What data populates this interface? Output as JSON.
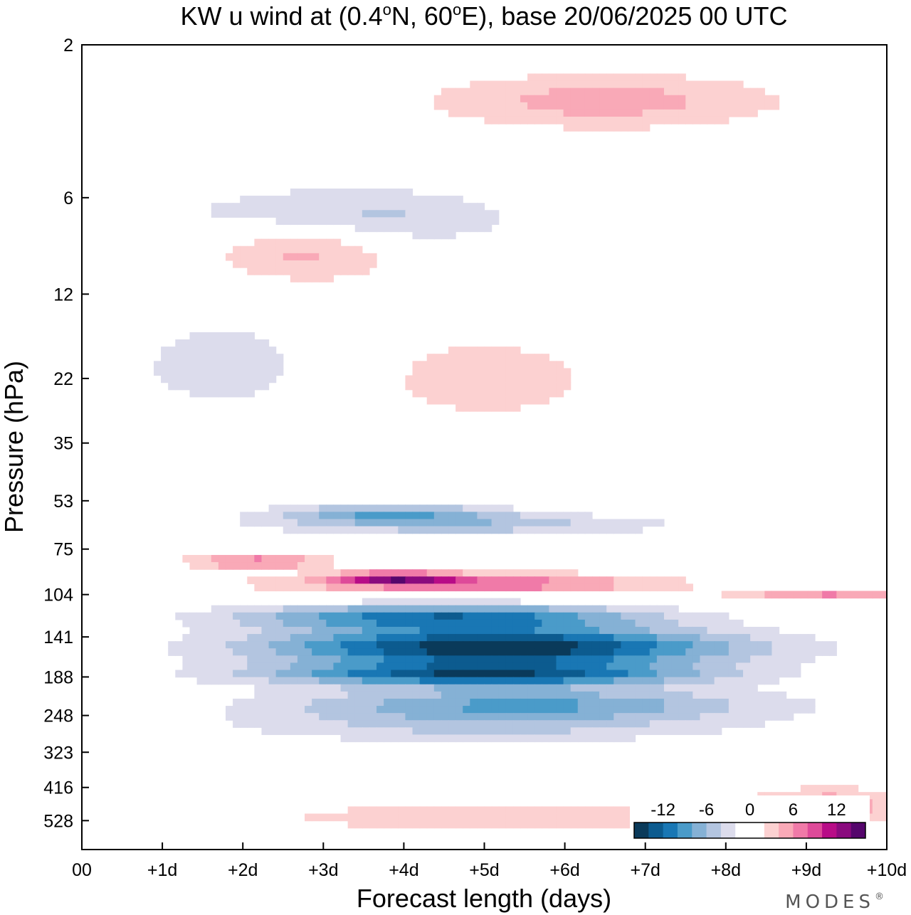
{
  "chart_data": {
    "type": "heatmap",
    "title_parts": {
      "prefix": "KW u wind at (0.4",
      "deg1": "o",
      "mid": "N, 60",
      "deg2": "o",
      "suffix": "E),  base 20/06/2025  00 UTC"
    },
    "xlabel": "Forecast length (days)",
    "ylabel": "Pressure (hPa)",
    "x_ticks": [
      "00",
      "+1d",
      "+2d",
      "+3d",
      "+4d",
      "+5d",
      "+6d",
      "+7d",
      "+8d",
      "+9d",
      "+10d"
    ],
    "xlim": [
      0,
      10
    ],
    "y_ticks": [
      2,
      6,
      12,
      22,
      35,
      53,
      75,
      104,
      141,
      188,
      248,
      323,
      416,
      528
    ],
    "ylim": [
      2,
      650
    ],
    "y_scale": "log",
    "levels": [
      -14,
      -12,
      -10,
      -8,
      -6,
      -4,
      -2,
      0,
      2,
      4,
      6,
      8,
      10,
      12,
      14
    ],
    "colors": [
      "#0a3a5a",
      "#0c5b8f",
      "#1977b4",
      "#4a9bc9",
      "#85b1d5",
      "#b3c5e0",
      "#dcdcec",
      "#ffffff",
      "#ffffff",
      "#fcd1d1",
      "#f9a9b7",
      "#f07aa8",
      "#de4a99",
      "#b80c87",
      "#8a0a7e",
      "#55066c"
    ],
    "colorbar_labels": [
      "-12",
      "-6",
      "0",
      "6",
      "12"
    ],
    "features": [
      {
        "center": [
          5.2,
          152
        ],
        "size": [
          5.8,
          42
        ],
        "value": -16
      },
      {
        "center": [
          5.0,
          185
        ],
        "size": [
          5.4,
          30
        ],
        "value": -12
      },
      {
        "center": [
          4.5,
          122
        ],
        "size": [
          5.0,
          22
        ],
        "value": -11
      },
      {
        "center": [
          5.5,
          228
        ],
        "size": [
          6.0,
          55
        ],
        "value": -8
      },
      {
        "center": [
          5.0,
          270
        ],
        "size": [
          6.5,
          65
        ],
        "value": -4
      },
      {
        "center": [
          4.8,
          96
        ],
        "size": [
          4.8,
          14
        ],
        "value": 8
      },
      {
        "center": [
          3.9,
          92
        ],
        "size": [
          1.4,
          7
        ],
        "value": 10
      },
      {
        "center": [
          2.2,
          82
        ],
        "size": [
          1.8,
          9
        ],
        "value": 7
      },
      {
        "center": [
          9.3,
          104
        ],
        "size": [
          2.4,
          9
        ],
        "value": 6
      },
      {
        "center": [
          4.8,
          63
        ],
        "size": [
          5.2,
          10
        ],
        "value": -5
      },
      {
        "center": [
          3.8,
          58
        ],
        "size": [
          2.8,
          8
        ],
        "value": -7
      },
      {
        "center": [
          3.2,
          7
        ],
        "size": [
          3.8,
          3
        ],
        "value": -6
      },
      {
        "center": [
          2.8,
          8.5
        ],
        "size": [
          2.4,
          4
        ],
        "value": 6
      },
      {
        "center": [
          5.0,
          22
        ],
        "size": [
          3.5,
          15
        ],
        "value": 3
      },
      {
        "center": [
          1.8,
          20
        ],
        "size": [
          2.8,
          15
        ],
        "value": -3
      },
      {
        "center": [
          5.5,
          515
        ],
        "size": [
          6.5,
          110
        ],
        "value": 4
      },
      {
        "center": [
          9.3,
          470
        ],
        "size": [
          2.0,
          120
        ],
        "value": 5
      },
      {
        "center": [
          6.5,
          3
        ],
        "size": [
          4.5,
          1.2
        ],
        "value": 5
      }
    ]
  },
  "brand": "MODES",
  "brand_mark": "®"
}
